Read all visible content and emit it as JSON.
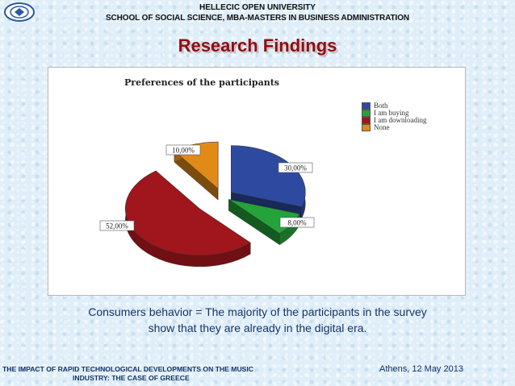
{
  "header": {
    "university": "HELLECIC OPEN UNIVERSITY",
    "school": "SCHOOL OF SOCIAL SCIENCE, MBA-MASTERS IN BUSINESS ADMINISTRATION",
    "logo_icon": "university-logo-icon"
  },
  "slide": {
    "title": "Research Findings",
    "caption_line1": "Consumers behavior = The majority of the participants in the survey",
    "caption_line2": "show that they are already in the digital era."
  },
  "footer": {
    "left_line1": "THE IMPACT OF RAPID TECHNOLOGICAL DEVELOPMENTS ON THE MUSIC",
    "left_line2": "INDUSTRY: THE CASE OF GREECE",
    "right": "Athens, 12 May 2013"
  },
  "chart_data": {
    "type": "pie",
    "title": "Preferences of the participants",
    "categories": [
      "Both",
      "I am buying",
      "I am downloading",
      "None"
    ],
    "values": [
      30,
      8,
      52,
      10
    ],
    "labels": [
      "30,00%",
      "8,00%",
      "52,00%",
      "10,00%"
    ],
    "colors": [
      "#2e4aa0",
      "#23a33a",
      "#a0161c",
      "#e28a18"
    ],
    "legend_position": "right",
    "style": "3d-exploded"
  }
}
